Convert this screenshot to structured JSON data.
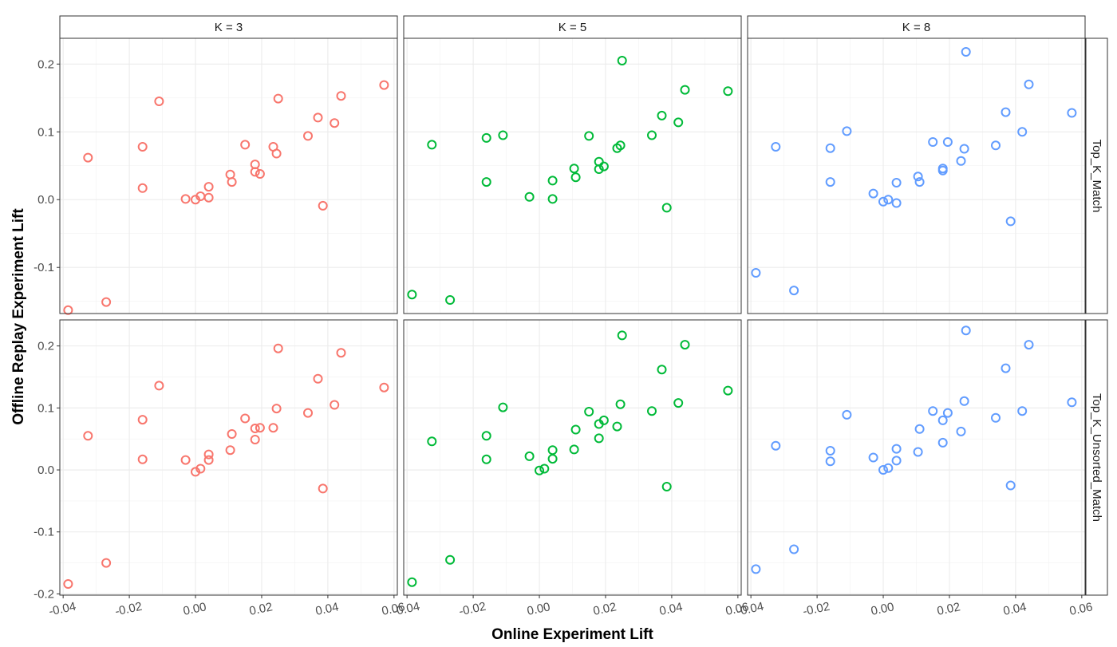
{
  "chart_data": {
    "type": "scatter",
    "xlabel": "Online Experiment Lift",
    "ylabel": "Offline Replay Experiment Lift",
    "xlim": [
      -0.041,
      0.061
    ],
    "x_ticks": [
      -0.04,
      -0.02,
      0.0,
      0.02,
      0.04,
      0.06
    ],
    "x_tick_labels": [
      "-0.04",
      "-0.02",
      "0.00",
      "0.02",
      "0.04",
      "0.06"
    ],
    "grid": true,
    "columns": [
      {
        "label": "K = 3",
        "color": "#F8766D"
      },
      {
        "label": "K = 5",
        "color": "#00BA38"
      },
      {
        "label": "K = 8",
        "color": "#619CFF"
      }
    ],
    "rows": [
      {
        "label": "Top_K_Match",
        "ylim": [
          -0.168,
          0.238
        ],
        "y_ticks": [
          -0.1,
          0.0,
          0.1,
          0.2
        ],
        "y_tick_labels": [
          "-0.1",
          "0.0",
          "0.1",
          "0.2"
        ]
      },
      {
        "label": "Top_K_Unsorted_Match",
        "ylim": [
          -0.202,
          0.242
        ],
        "y_ticks": [
          -0.2,
          -0.1,
          0.0,
          0.1,
          0.2
        ],
        "y_tick_labels": [
          "-0.2",
          "-0.1",
          "0.0",
          "0.1",
          "0.2"
        ]
      }
    ],
    "x": [
      -0.0385,
      -0.0325,
      -0.027,
      -0.016,
      -0.016,
      -0.011,
      -0.003,
      0.0,
      0.0015,
      0.004,
      0.004,
      0.0105,
      0.011,
      0.015,
      0.018,
      0.018,
      0.0195,
      0.0235,
      0.0245,
      0.025,
      0.034,
      0.037,
      0.0385,
      0.042,
      0.044,
      0.057
    ],
    "panels": [
      {
        "row": 0,
        "col": 0,
        "y": [
          -0.163,
          0.062,
          -0.151,
          0.017,
          0.078,
          0.145,
          0.001,
          0.0,
          0.005,
          0.019,
          0.003,
          0.037,
          0.026,
          0.081,
          0.041,
          0.052,
          0.038,
          0.078,
          0.068,
          0.149,
          0.094,
          0.121,
          -0.009,
          0.113,
          0.153,
          0.169
        ]
      },
      {
        "row": 0,
        "col": 1,
        "y": [
          -0.14,
          0.081,
          -0.148,
          0.026,
          0.091,
          0.095,
          0.004,
          null,
          null,
          0.028,
          0.001,
          0.046,
          0.033,
          0.094,
          0.045,
          0.056,
          0.049,
          0.076,
          0.08,
          0.205,
          0.095,
          0.124,
          -0.012,
          0.114,
          0.162,
          0.16
        ]
      },
      {
        "row": 0,
        "col": 2,
        "y": [
          -0.108,
          0.078,
          -0.134,
          0.026,
          0.076,
          0.101,
          0.009,
          -0.003,
          0.0,
          0.025,
          -0.005,
          0.034,
          0.026,
          0.085,
          0.043,
          0.046,
          0.085,
          0.057,
          0.075,
          0.218,
          0.08,
          0.129,
          -0.032,
          0.1,
          0.17,
          0.128
        ]
      },
      {
        "row": 1,
        "col": 0,
        "y": [
          -0.184,
          0.055,
          -0.15,
          0.017,
          0.081,
          0.136,
          0.016,
          -0.003,
          0.002,
          0.025,
          0.016,
          0.032,
          0.058,
          0.083,
          0.067,
          0.049,
          0.068,
          0.068,
          0.099,
          0.196,
          0.092,
          0.147,
          -0.03,
          0.105,
          0.189,
          0.133
        ]
      },
      {
        "row": 1,
        "col": 1,
        "y": [
          -0.181,
          0.046,
          -0.145,
          0.017,
          0.055,
          0.101,
          0.022,
          -0.001,
          0.002,
          0.032,
          0.018,
          0.033,
          0.065,
          0.094,
          0.074,
          0.051,
          0.08,
          0.07,
          0.106,
          0.217,
          0.095,
          0.162,
          -0.027,
          0.108,
          0.202,
          0.128
        ]
      },
      {
        "row": 1,
        "col": 2,
        "y": [
          -0.16,
          0.039,
          -0.128,
          0.014,
          0.031,
          0.089,
          0.02,
          0.0,
          0.003,
          0.034,
          0.015,
          0.029,
          0.066,
          0.095,
          0.08,
          0.044,
          0.092,
          0.062,
          0.111,
          0.225,
          0.084,
          0.164,
          -0.025,
          0.095,
          0.202,
          0.109
        ]
      }
    ]
  }
}
